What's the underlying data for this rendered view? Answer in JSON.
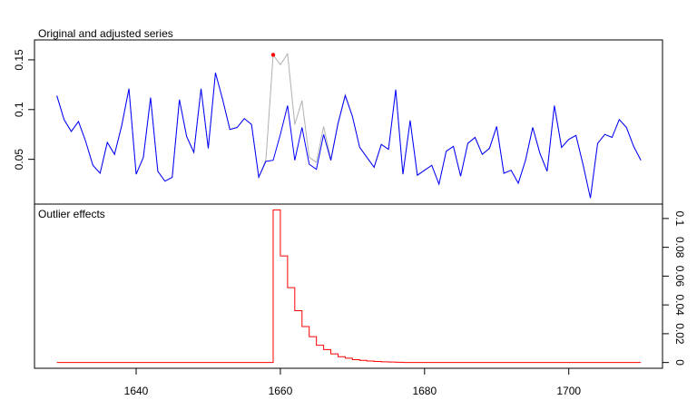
{
  "chart_data": [
    {
      "type": "line",
      "title": "Original and adjusted series",
      "xlabel": "",
      "ylabel": "",
      "x": [
        1629,
        1630,
        1631,
        1632,
        1633,
        1634,
        1635,
        1636,
        1637,
        1638,
        1639,
        1640,
        1641,
        1642,
        1643,
        1644,
        1645,
        1646,
        1647,
        1648,
        1649,
        1650,
        1651,
        1652,
        1653,
        1654,
        1655,
        1656,
        1657,
        1658,
        1659,
        1660,
        1661,
        1662,
        1663,
        1664,
        1665,
        1666,
        1667,
        1668,
        1669,
        1670,
        1671,
        1672,
        1673,
        1674,
        1675,
        1676,
        1677,
        1678,
        1679,
        1680,
        1681,
        1682,
        1683,
        1684,
        1685,
        1686,
        1687,
        1688,
        1689,
        1690,
        1691,
        1692,
        1693,
        1694,
        1695,
        1696,
        1697,
        1698,
        1699,
        1700,
        1701,
        1702,
        1703,
        1704,
        1705,
        1706,
        1707,
        1708,
        1709,
        1710
      ],
      "series": [
        {
          "name": "",
          "color": "#b0b0b0",
          "values": [
            0.114,
            0.09,
            0.078,
            0.088,
            0.068,
            0.044,
            0.036,
            0.067,
            0.055,
            0.084,
            0.121,
            0.035,
            0.052,
            0.112,
            0.038,
            0.028,
            0.032,
            0.11,
            0.073,
            0.057,
            0.121,
            0.061,
            0.137,
            0.11,
            0.08,
            0.082,
            0.091,
            0.085,
            0.032,
            0.05,
            0.155,
            0.145,
            0.156,
            0.085,
            0.109,
            0.052,
            0.047,
            0.083,
            0.05,
            0.087,
            0.115,
            0.093,
            0.062,
            0.052,
            0.042,
            0.065,
            0.06,
            0.12,
            0.035,
            0.089,
            0.034,
            0.039,
            0.044,
            0.025,
            0.058,
            0.063,
            0.033,
            0.066,
            0.072,
            0.055,
            0.061,
            0.083,
            0.036,
            0.039,
            0.026,
            0.049,
            0.082,
            0.056,
            0.038,
            0.104,
            0.062,
            0.07,
            0.074,
            0.044,
            0.011,
            0.066,
            0.075,
            0.072,
            0.09,
            0.082,
            0.063,
            0.049
          ]
        },
        {
          "name": "",
          "color": "#0000ff",
          "values": [
            0.114,
            0.09,
            0.078,
            0.088,
            0.068,
            0.044,
            0.036,
            0.067,
            0.055,
            0.084,
            0.121,
            0.035,
            0.052,
            0.112,
            0.038,
            0.028,
            0.032,
            0.11,
            0.073,
            0.057,
            0.121,
            0.061,
            0.137,
            0.11,
            0.08,
            0.082,
            0.091,
            0.085,
            0.032,
            0.048,
            0.049,
            0.075,
            0.104,
            0.049,
            0.082,
            0.045,
            0.04,
            0.075,
            0.049,
            0.086,
            0.114,
            0.093,
            0.062,
            0.052,
            0.042,
            0.065,
            0.06,
            0.12,
            0.035,
            0.089,
            0.034,
            0.039,
            0.044,
            0.025,
            0.058,
            0.063,
            0.033,
            0.066,
            0.072,
            0.055,
            0.061,
            0.083,
            0.036,
            0.039,
            0.026,
            0.049,
            0.082,
            0.056,
            0.038,
            0.104,
            0.062,
            0.07,
            0.074,
            0.044,
            0.011,
            0.066,
            0.075,
            0.072,
            0.09,
            0.082,
            0.063,
            0.049
          ]
        }
      ],
      "outliers": [
        {
          "x": 1659,
          "y": 0.155,
          "color": "#ff0000"
        }
      ],
      "ylim": [
        0.005,
        0.17
      ],
      "yticks": [
        0.05,
        0.1,
        0.15
      ],
      "ytick_labels": [
        "0.05",
        "0.1",
        "0.15"
      ],
      "yaxis_side": "left",
      "grid": false
    },
    {
      "type": "line",
      "title": "Outlier effects",
      "xlabel": "",
      "ylabel": "",
      "step": true,
      "color": "#ff0000",
      "x": [
        1629,
        1630,
        1631,
        1632,
        1633,
        1634,
        1635,
        1636,
        1637,
        1638,
        1639,
        1640,
        1641,
        1642,
        1643,
        1644,
        1645,
        1646,
        1647,
        1648,
        1649,
        1650,
        1651,
        1652,
        1653,
        1654,
        1655,
        1656,
        1657,
        1658,
        1659,
        1660,
        1661,
        1662,
        1663,
        1664,
        1665,
        1666,
        1667,
        1668,
        1669,
        1670,
        1671,
        1672,
        1673,
        1674,
        1675,
        1676,
        1677,
        1678,
        1679,
        1680,
        1681,
        1682,
        1683,
        1684,
        1685,
        1686,
        1687,
        1688,
        1689,
        1690,
        1691,
        1692,
        1693,
        1694,
        1695,
        1696,
        1697,
        1698,
        1699,
        1700,
        1701,
        1702,
        1703,
        1704,
        1705,
        1706,
        1707,
        1708,
        1709,
        1710
      ],
      "values": [
        0,
        0,
        0,
        0,
        0,
        0,
        0,
        0,
        0,
        0,
        0,
        0,
        0,
        0,
        0,
        0,
        0,
        0,
        0,
        0,
        0,
        0,
        0,
        0,
        0,
        0,
        0,
        0,
        0,
        0,
        0.106,
        0.074,
        0.052,
        0.036,
        0.025,
        0.018,
        0.012,
        0.009,
        0.006,
        0.004,
        0.003,
        0.002,
        0.0015,
        0.001,
        0.0007,
        0.0005,
        0.0003,
        0.0002,
        0,
        0,
        0,
        0,
        0,
        0,
        0,
        0,
        0,
        0,
        0,
        0,
        0,
        0,
        0,
        0,
        0,
        0,
        0,
        0,
        0,
        0,
        0,
        0,
        0,
        0,
        0,
        0,
        0,
        0,
        0,
        0,
        0,
        0
      ],
      "ylim": [
        -0.004,
        0.11
      ],
      "yticks": [
        0,
        0.02,
        0.04,
        0.06,
        0.08,
        0.1
      ],
      "ytick_labels": [
        "0",
        "0.02",
        "0.04",
        "0.06",
        "0.08",
        "0.1"
      ],
      "yaxis_side": "right",
      "xticks": [
        1640,
        1660,
        1680,
        1700
      ],
      "xtick_labels": [
        "1640",
        "1660",
        "1680",
        "1700"
      ],
      "xlim": [
        1625.9,
        1713.0
      ],
      "grid": false
    }
  ]
}
